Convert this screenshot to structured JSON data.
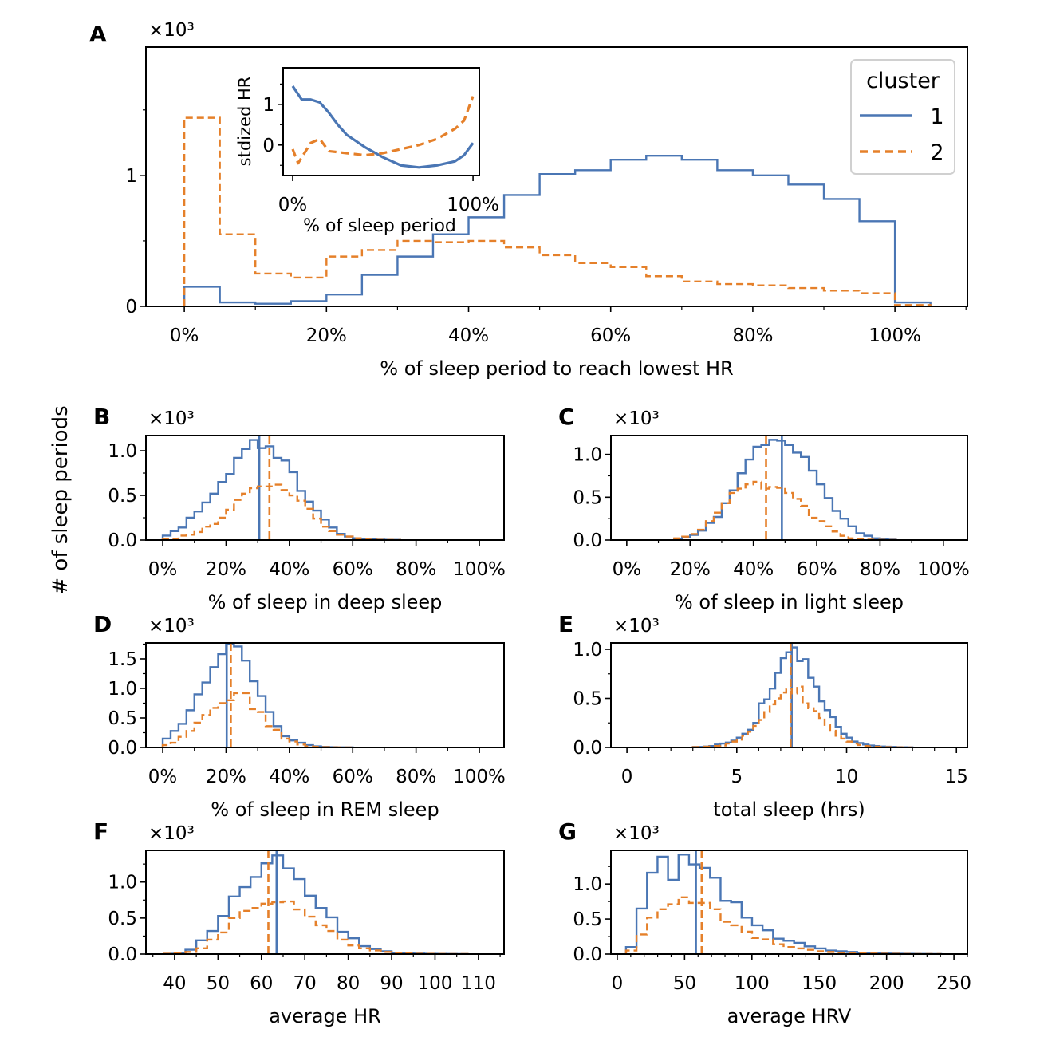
{
  "chart_data": {
    "type": "histogram",
    "ylabel": "# of sleep periods",
    "colors": {
      "1": "#4a76b4",
      "2": "#e5802a"
    },
    "legend": {
      "title": "cluster",
      "entries": [
        "1",
        "2"
      ],
      "placement": "upper right of panel A"
    },
    "panels": [
      {
        "letter": "A",
        "multiplier": "×10³",
        "xlabel": "% of sleep period to reach lowest HR",
        "xlim": [
          -5.4,
          110.2
        ],
        "ylim": [
          0,
          1.98
        ],
        "xticks": [
          0,
          20,
          40,
          60,
          80,
          100
        ],
        "xtick_labels": [
          "0%",
          "20%",
          "40%",
          "60%",
          "80%",
          "100%"
        ],
        "xminor": 10,
        "yticks": [
          0,
          1
        ],
        "ytick_labels": [
          "0",
          "1"
        ],
        "yminor": 0.5,
        "series": [
          {
            "name": "1",
            "bin_start": 0,
            "bin_width": 5,
            "values": [
              0.15,
              0.03,
              0.02,
              0.04,
              0.09,
              0.24,
              0.38,
              0.55,
              0.68,
              0.85,
              1.01,
              1.04,
              1.12,
              1.15,
              1.12,
              1.04,
              1.0,
              0.93,
              0.82,
              0.65,
              0.03
            ]
          },
          {
            "name": "2",
            "bin_start": 0,
            "bin_width": 5,
            "values": [
              1.44,
              0.55,
              0.25,
              0.22,
              0.38,
              0.43,
              0.5,
              0.49,
              0.5,
              0.45,
              0.39,
              0.33,
              0.3,
              0.23,
              0.19,
              0.17,
              0.16,
              0.14,
              0.12,
              0.1,
              0.01
            ]
          }
        ]
      },
      {
        "letter": "B",
        "multiplier": "×10³",
        "xlabel": "% of sleep in deep sleep",
        "xlim": [
          -5.3,
          107.8
        ],
        "ylim": [
          0,
          1.17
        ],
        "xticks": [
          0,
          20,
          40,
          60,
          80,
          100
        ],
        "xtick_labels": [
          "0%",
          "20%",
          "40%",
          "60%",
          "80%",
          "100%"
        ],
        "xminor": 10,
        "yticks": [
          0,
          0.5,
          1.0
        ],
        "ytick_labels": [
          "0.0",
          "0.5",
          "1.0"
        ],
        "yminor": 0.25,
        "series": [
          {
            "name": "1",
            "bin_start": 0,
            "bin_width": 2.5,
            "mean": 30.5,
            "values": [
              0.05,
              0.1,
              0.14,
              0.25,
              0.32,
              0.42,
              0.52,
              0.65,
              0.74,
              0.92,
              1.02,
              1.12,
              1.03,
              1.05,
              0.92,
              0.89,
              0.76,
              0.55,
              0.43,
              0.33,
              0.23,
              0.14,
              0.07,
              0.04,
              0.02,
              0.015,
              0.01,
              0.005,
              0.003,
              0.002
            ]
          },
          {
            "name": "2",
            "bin_start": 0,
            "bin_width": 2.5,
            "mean": 33.7,
            "values": [
              0.01,
              0.015,
              0.05,
              0.06,
              0.09,
              0.15,
              0.18,
              0.25,
              0.34,
              0.45,
              0.52,
              0.58,
              0.6,
              0.6,
              0.62,
              0.56,
              0.5,
              0.44,
              0.35,
              0.24,
              0.15,
              0.1,
              0.06,
              0.04,
              0.02,
              0.01,
              0.005,
              0.003,
              0.002,
              0.001
            ]
          }
        ]
      },
      {
        "letter": "C",
        "multiplier": "×10³",
        "xlabel": "% of sleep in light sleep",
        "xlim": [
          -5.0,
          107.6
        ],
        "ylim": [
          0,
          1.22
        ],
        "xticks": [
          0,
          20,
          40,
          60,
          80,
          100
        ],
        "xtick_labels": [
          "0%",
          "20%",
          "40%",
          "60%",
          "80%",
          "100%"
        ],
        "xminor": 10,
        "yticks": [
          0,
          0.5,
          1.0
        ],
        "ytick_labels": [
          "0.0",
          "0.5",
          "1.0"
        ],
        "yminor": 0.25,
        "series": [
          {
            "name": "1",
            "bin_start": 15,
            "bin_width": 2.5,
            "mean": 49.0,
            "values": [
              0.01,
              0.03,
              0.06,
              0.11,
              0.2,
              0.27,
              0.43,
              0.58,
              0.78,
              0.94,
              1.09,
              1.11,
              1.17,
              1.16,
              1.11,
              1.02,
              0.97,
              0.81,
              0.65,
              0.49,
              0.34,
              0.25,
              0.16,
              0.08,
              0.05,
              0.02,
              0.01,
              0.005
            ]
          },
          {
            "name": "2",
            "bin_start": 15,
            "bin_width": 2.5,
            "mean": 44.0,
            "values": [
              0.02,
              0.04,
              0.07,
              0.12,
              0.22,
              0.32,
              0.43,
              0.55,
              0.6,
              0.65,
              0.68,
              0.6,
              0.62,
              0.61,
              0.55,
              0.48,
              0.4,
              0.26,
              0.22,
              0.16,
              0.1,
              0.05,
              0.02,
              0.01,
              0.005,
              0.003,
              0.002,
              0.001
            ]
          }
        ]
      },
      {
        "letter": "D",
        "multiplier": "×10³",
        "xlabel": "% of sleep in REM sleep",
        "xlim": [
          -5.3,
          107.8
        ],
        "ylim": [
          0,
          1.77
        ],
        "xticks": [
          0,
          20,
          40,
          60,
          80,
          100
        ],
        "xtick_labels": [
          "0%",
          "20%",
          "40%",
          "60%",
          "80%",
          "100%"
        ],
        "xminor": 10,
        "yticks": [
          0,
          0.5,
          1.0,
          1.5
        ],
        "ytick_labels": [
          "0.0",
          "0.5",
          "1.0",
          "1.5"
        ],
        "yminor": 0.25,
        "series": [
          {
            "name": "1",
            "bin_start": 0,
            "bin_width": 2.5,
            "mean": 20.2,
            "values": [
              0.15,
              0.28,
              0.4,
              0.63,
              0.9,
              1.1,
              1.36,
              1.58,
              1.76,
              1.71,
              1.47,
              1.12,
              0.87,
              0.6,
              0.36,
              0.19,
              0.12,
              0.08,
              0.04,
              0.02,
              0.01,
              0.005,
              0.003,
              0.002
            ]
          },
          {
            "name": "2",
            "bin_start": 0,
            "bin_width": 2.5,
            "mean": 21.5,
            "values": [
              0.04,
              0.08,
              0.18,
              0.28,
              0.42,
              0.55,
              0.67,
              0.75,
              0.8,
              0.92,
              0.92,
              0.65,
              0.6,
              0.36,
              0.3,
              0.15,
              0.1,
              0.05,
              0.02,
              0.01,
              0.005,
              0.003,
              0.002,
              0.001
            ]
          }
        ]
      },
      {
        "letter": "E",
        "multiplier": "×10³",
        "xlabel": "total sleep (hrs)",
        "xlim": [
          -0.73,
          15.5
        ],
        "ylim": [
          0,
          1.065
        ],
        "xticks": [
          0,
          5,
          10,
          15
        ],
        "xtick_labels": [
          "0",
          "5",
          "10",
          "15"
        ],
        "xminor": 1,
        "yticks": [
          0,
          0.5,
          1.0
        ],
        "ytick_labels": [
          "0.0",
          "0.5",
          "1.0"
        ],
        "yminor": 0.25,
        "series": [
          {
            "name": "1",
            "bin_start": 3,
            "bin_width": 0.25,
            "mean": 7.5,
            "values": [
              0.005,
              0.005,
              0.01,
              0.015,
              0.03,
              0.04,
              0.05,
              0.07,
              0.1,
              0.14,
              0.18,
              0.25,
              0.45,
              0.49,
              0.6,
              0.76,
              0.91,
              0.97,
              1.02,
              0.88,
              0.9,
              0.71,
              0.62,
              0.47,
              0.38,
              0.31,
              0.21,
              0.14,
              0.1,
              0.06,
              0.045,
              0.03,
              0.02,
              0.015,
              0.01,
              0.008,
              0.005,
              0.003,
              0.002,
              0.001
            ]
          },
          {
            "name": "2",
            "bin_start": 3,
            "bin_width": 0.25,
            "mean": 7.45,
            "values": [
              0.003,
              0.005,
              0.008,
              0.01,
              0.015,
              0.02,
              0.04,
              0.06,
              0.08,
              0.12,
              0.16,
              0.22,
              0.28,
              0.36,
              0.44,
              0.5,
              0.56,
              0.6,
              0.55,
              0.62,
              0.45,
              0.4,
              0.37,
              0.3,
              0.23,
              0.17,
              0.12,
              0.09,
              0.06,
              0.04,
              0.025,
              0.015,
              0.01,
              0.008,
              0.005,
              0.003,
              0.002,
              0.001,
              0.001,
              0.0
            ]
          }
        ]
      },
      {
        "letter": "F",
        "multiplier": "×10³",
        "xlabel": "average HR",
        "xlim": [
          33.4,
          115.9
        ],
        "ylim": [
          0,
          1.44
        ],
        "xticks": [
          40,
          50,
          60,
          70,
          80,
          90,
          100,
          110
        ],
        "xtick_labels": [
          "40",
          "50",
          "60",
          "70",
          "80",
          "90",
          "100",
          "110"
        ],
        "xminor": 5,
        "yticks": [
          0,
          0.5,
          1.0
        ],
        "ytick_labels": [
          "0.0",
          "0.5",
          "1.0"
        ],
        "yminor": 0.25,
        "series": [
          {
            "name": "1",
            "bin_start": 37.5,
            "bin_width": 2.5,
            "mean": 63.5,
            "values": [
              0.005,
              0.01,
              0.06,
              0.19,
              0.32,
              0.53,
              0.8,
              0.93,
              1.07,
              1.26,
              1.37,
              1.19,
              1.04,
              0.81,
              0.64,
              0.51,
              0.31,
              0.22,
              0.11,
              0.07,
              0.04,
              0.02,
              0.01,
              0.008,
              0.005,
              0.003,
              0.002,
              0.001
            ]
          },
          {
            "name": "2",
            "bin_start": 37.5,
            "bin_width": 2.5,
            "mean": 61.6,
            "values": [
              0.005,
              0.01,
              0.03,
              0.08,
              0.2,
              0.3,
              0.5,
              0.6,
              0.64,
              0.7,
              0.72,
              0.73,
              0.62,
              0.52,
              0.4,
              0.32,
              0.2,
              0.12,
              0.08,
              0.05,
              0.03,
              0.02,
              0.01,
              0.005,
              0.003,
              0.002,
              0.001,
              0.001
            ]
          }
        ]
      },
      {
        "letter": "G",
        "multiplier": "×10³",
        "xlabel": "average HRV",
        "xlim": [
          -4.7,
          260
        ],
        "ylim": [
          0,
          1.48
        ],
        "xticks": [
          0,
          50,
          100,
          150,
          200,
          250
        ],
        "xtick_labels": [
          "0",
          "50",
          "100",
          "150",
          "200",
          "250"
        ],
        "xminor": 10,
        "yticks": [
          0,
          0.5,
          1.0
        ],
        "ytick_labels": [
          "0.0",
          "0.5",
          "1.0"
        ],
        "yminor": 0.25,
        "series": [
          {
            "name": "1",
            "bin_start": 6.5,
            "bin_width": 7.8,
            "mean": 58.4,
            "values": [
              0.1,
              0.65,
              1.16,
              1.39,
              1.06,
              1.42,
              1.28,
              1.23,
              1.09,
              0.76,
              0.74,
              0.52,
              0.41,
              0.34,
              0.22,
              0.19,
              0.16,
              0.11,
              0.08,
              0.05,
              0.04,
              0.03,
              0.02,
              0.015,
              0.01,
              0.008,
              0.005,
              0.003,
              0.002,
              0.001
            ]
          },
          {
            "name": "2",
            "bin_start": 6.5,
            "bin_width": 7.8,
            "mean": 62.7,
            "values": [
              0.05,
              0.28,
              0.52,
              0.64,
              0.71,
              0.81,
              0.73,
              0.73,
              0.64,
              0.46,
              0.41,
              0.32,
              0.23,
              0.21,
              0.14,
              0.1,
              0.08,
              0.06,
              0.04,
              0.03,
              0.02,
              0.015,
              0.01,
              0.008,
              0.005,
              0.003,
              0.002,
              0.001,
              0.001,
              0.0
            ]
          }
        ]
      }
    ],
    "inset": {
      "type": "line",
      "xlabel": "% of sleep period",
      "ylabel": "stdized HR",
      "xlim": [
        -5.3,
        103.5
      ],
      "ylim": [
        -0.75,
        1.9
      ],
      "xticks": [
        0,
        100
      ],
      "xtick_labels": [
        "0%",
        "100%"
      ],
      "yticks": [
        0,
        1
      ],
      "ytick_labels": [
        "0",
        "1"
      ],
      "yminor": 0.5,
      "series": [
        {
          "name": "1",
          "x": [
            0,
            5,
            10,
            15,
            20,
            25,
            30,
            40,
            50,
            60,
            70,
            80,
            90,
            95,
            100
          ],
          "y": [
            1.45,
            1.12,
            1.12,
            1.05,
            0.8,
            0.5,
            0.25,
            -0.05,
            -0.3,
            -0.5,
            -0.55,
            -0.5,
            -0.4,
            -0.25,
            0.05
          ]
        },
        {
          "name": "2",
          "x": [
            0,
            3,
            10,
            15,
            20,
            30,
            40,
            50,
            60,
            70,
            80,
            90,
            95,
            100
          ],
          "y": [
            -0.1,
            -0.45,
            0.05,
            0.15,
            -0.15,
            -0.2,
            -0.25,
            -0.2,
            -0.1,
            0.0,
            0.15,
            0.4,
            0.6,
            1.2
          ]
        }
      ]
    }
  }
}
